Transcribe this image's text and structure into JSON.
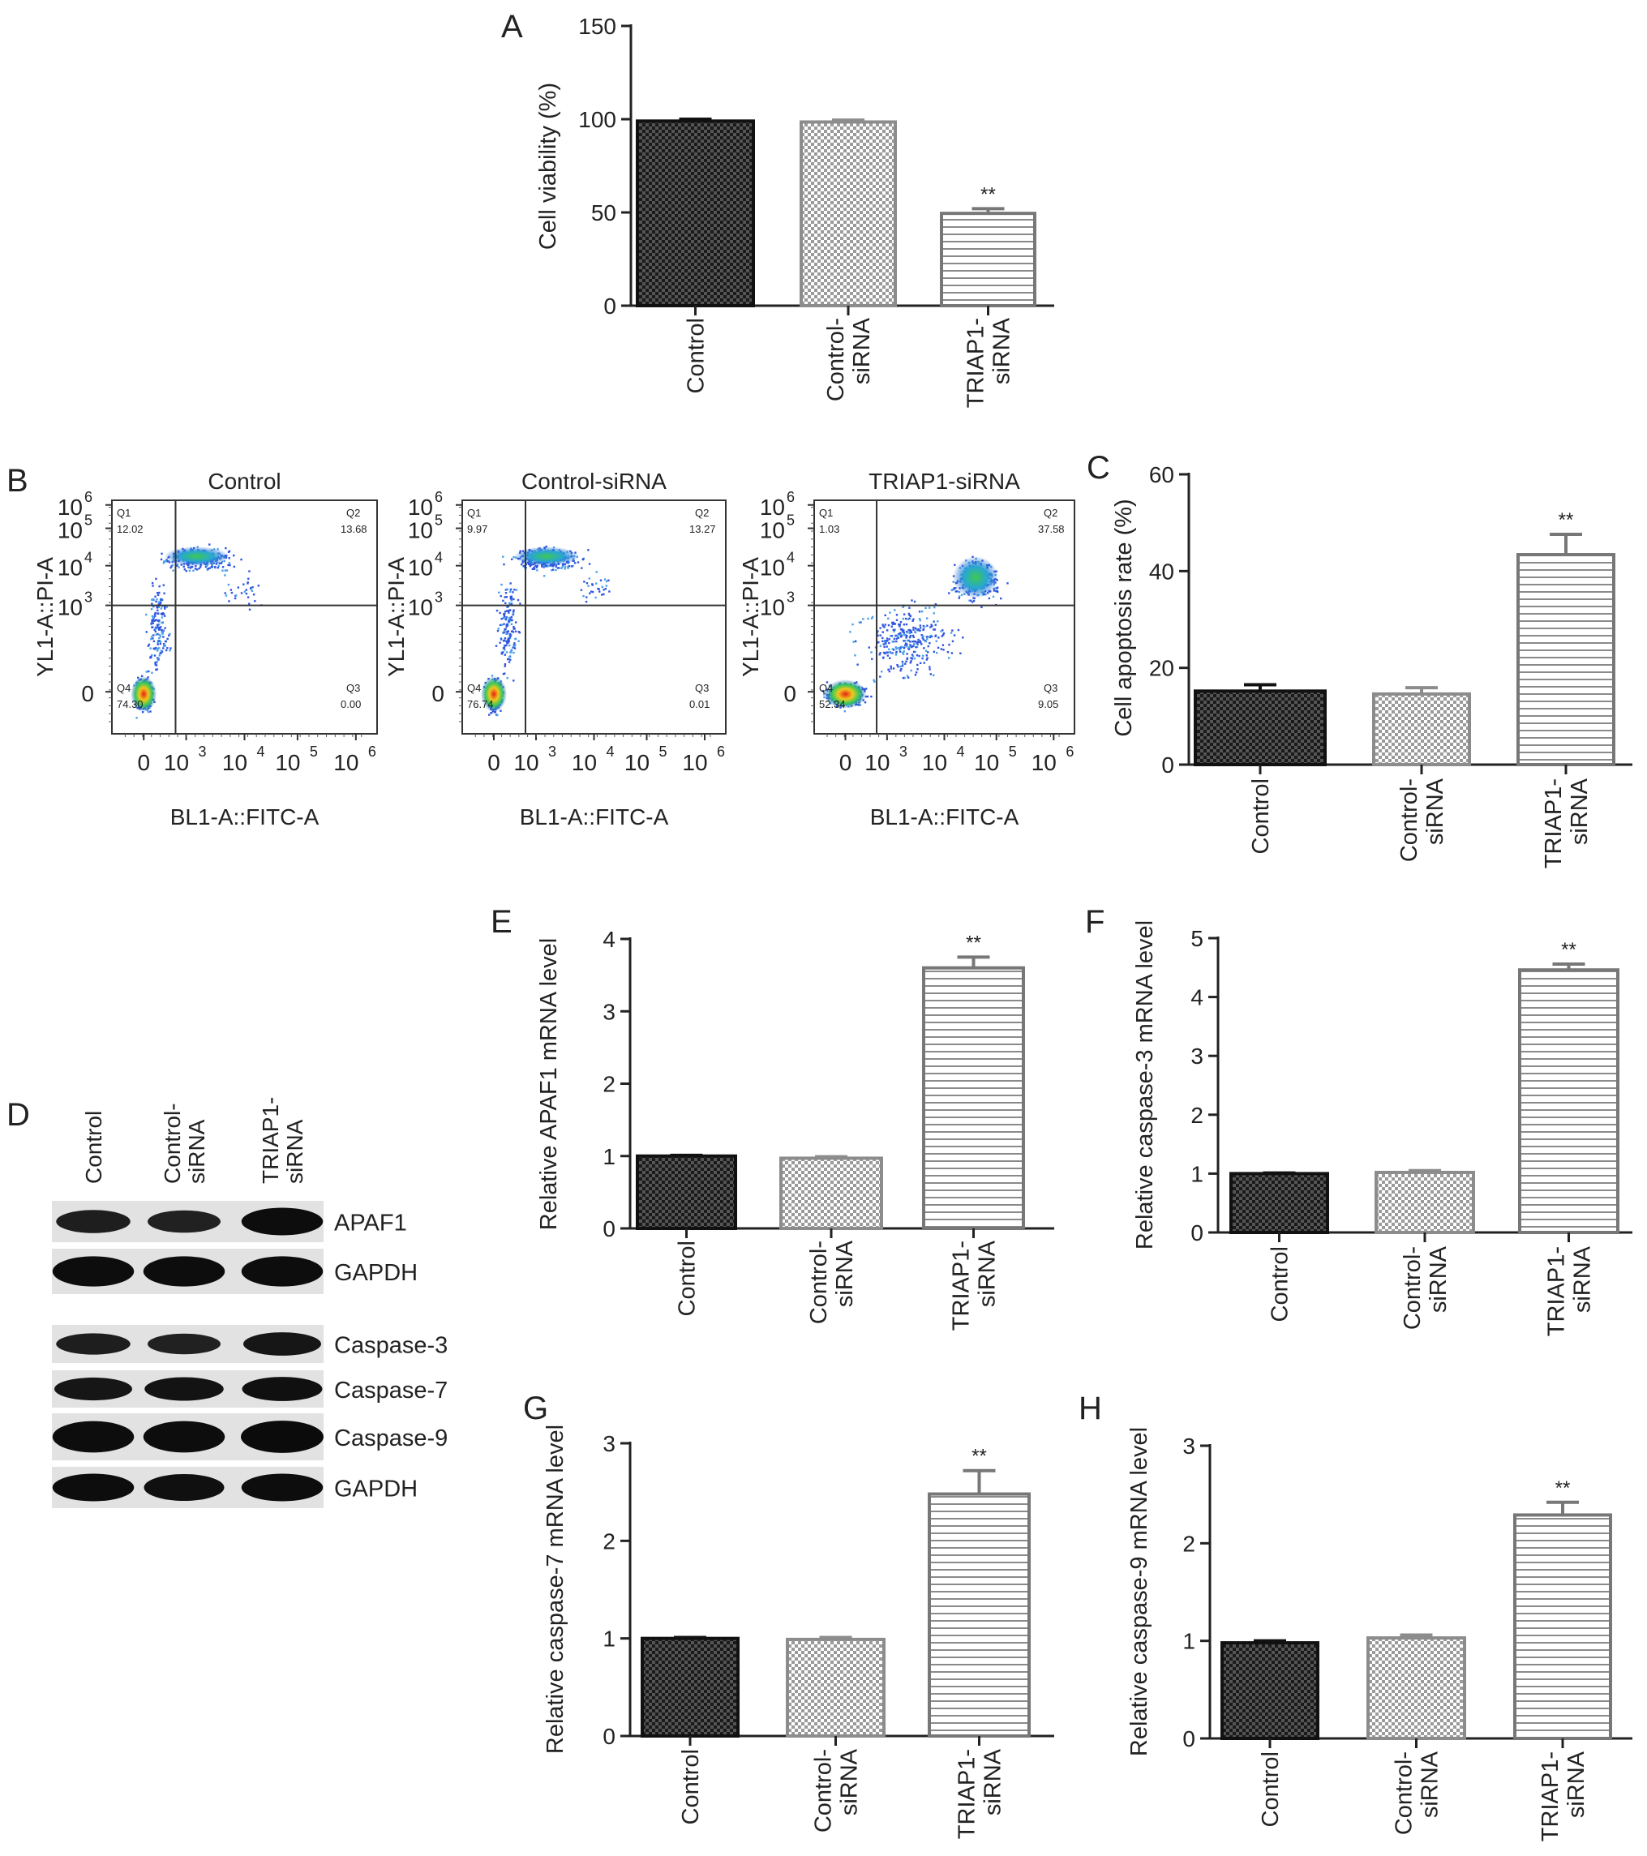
{
  "figure": {
    "categories": [
      "Control",
      "Control-siRNA",
      "TRIAP1-siRNA"
    ],
    "category_labels": [
      [
        "Control"
      ],
      [
        "Control-",
        "siRNA"
      ],
      [
        "TRIAP1-",
        "siRNA"
      ]
    ],
    "significance_marker": "**"
  },
  "chart_data": [
    {
      "id": "A",
      "type": "bar",
      "panel_label": "A",
      "ylabel": "Cell viability (%)",
      "categories": [
        "Control",
        "Control-siRNA",
        "TRIAP1-siRNA"
      ],
      "values": [
        99,
        98.5,
        49.5
      ],
      "errors": [
        1.0,
        1.0,
        2.5
      ],
      "yticks": [
        0,
        50,
        100,
        150
      ],
      "ylim": [
        0,
        150
      ],
      "significance": [
        "",
        "",
        "**"
      ]
    },
    {
      "id": "C",
      "type": "bar",
      "panel_label": "C",
      "ylabel": "Cell apoptosis rate (%)",
      "categories": [
        "Control",
        "Control-siRNA",
        "TRIAP1-siRNA"
      ],
      "values": [
        15.2,
        14.6,
        43.4
      ],
      "errors": [
        1.3,
        1.3,
        4.2
      ],
      "yticks": [
        0,
        20,
        40,
        60
      ],
      "ylim": [
        0,
        60
      ],
      "significance": [
        "",
        "",
        "**"
      ]
    },
    {
      "id": "E",
      "type": "bar",
      "panel_label": "E",
      "ylabel": "Relative APAF1 mRNA level",
      "categories": [
        "Control",
        "Control-siRNA",
        "TRIAP1-siRNA"
      ],
      "values": [
        1.0,
        0.97,
        3.6
      ],
      "errors": [
        0.01,
        0.02,
        0.15
      ],
      "yticks": [
        0,
        1,
        2,
        3,
        4
      ],
      "ylim": [
        0,
        4
      ],
      "significance": [
        "",
        "",
        "**"
      ]
    },
    {
      "id": "F",
      "type": "bar",
      "panel_label": "F",
      "ylabel": "Relative caspase-3 mRNA level",
      "categories": [
        "Control",
        "Control-siRNA",
        "TRIAP1-siRNA"
      ],
      "values": [
        1.0,
        1.02,
        4.46
      ],
      "errors": [
        0.01,
        0.03,
        0.1
      ],
      "yticks": [
        0,
        1,
        2,
        3,
        4,
        5
      ],
      "ylim": [
        0,
        5
      ],
      "significance": [
        "",
        "",
        "**"
      ]
    },
    {
      "id": "G",
      "type": "bar",
      "panel_label": "G",
      "ylabel": "Relative caspase-7 mRNA level",
      "categories": [
        "Control",
        "Control-siRNA",
        "TRIAP1-siRNA"
      ],
      "values": [
        1.0,
        0.99,
        2.48
      ],
      "errors": [
        0.01,
        0.02,
        0.24
      ],
      "yticks": [
        0,
        1,
        2,
        3
      ],
      "ylim": [
        0,
        3
      ],
      "significance": [
        "",
        "",
        "**"
      ]
    },
    {
      "id": "H",
      "type": "bar",
      "panel_label": "H",
      "ylabel": "Relative caspase-9 mRNA level",
      "categories": [
        "Control",
        "Control-siRNA",
        "TRIAP1-siRNA"
      ],
      "values": [
        0.98,
        1.03,
        2.29
      ],
      "errors": [
        0.02,
        0.03,
        0.13
      ],
      "yticks": [
        0,
        1,
        2,
        3
      ],
      "ylim": [
        0,
        3
      ],
      "significance": [
        "",
        "",
        "**"
      ]
    }
  ],
  "flow": {
    "panel_label": "B",
    "xlabel": "BL1-A::FITC-A",
    "ylabel": "YL1-A::PI-A",
    "axis_ticks": [
      "0",
      "10",
      "10",
      "10",
      "10"
    ],
    "axis_exponents": [
      "",
      "3",
      "4",
      "5",
      "6"
    ],
    "plots": [
      {
        "title": "Control",
        "q1": "12.02",
        "q2": "13.68",
        "q3": "0.00",
        "q4": "74.30"
      },
      {
        "title": "Control-siRNA",
        "q1": "9.97",
        "q2": "13.27",
        "q3": "0.01",
        "q4": "76.74"
      },
      {
        "title": "TRIAP1-siRNA",
        "q1": "1.03",
        "q2": "37.58",
        "q3": "9.05",
        "q4": "52.34"
      }
    ],
    "quadrant_names": [
      "Q1",
      "Q2",
      "Q3",
      "Q4"
    ]
  },
  "western": {
    "panel_label": "D",
    "lane_labels": [
      [
        "Control"
      ],
      [
        "Control-",
        "siRNA"
      ],
      [
        "TRIAP1-",
        "siRNA"
      ]
    ],
    "bands": [
      {
        "label": "APAF1",
        "intensity": [
          0.55,
          0.5,
          0.85
        ]
      },
      {
        "label": "GAPDH",
        "intensity": [
          0.85,
          0.85,
          0.85
        ]
      },
      {
        "label": "Caspase-3",
        "intensity": [
          0.55,
          0.5,
          0.7
        ]
      },
      {
        "label": "Caspase-7",
        "intensity": [
          0.7,
          0.75,
          0.8
        ]
      },
      {
        "label": "Caspase-9",
        "intensity": [
          0.85,
          0.85,
          0.9
        ]
      },
      {
        "label": "GAPDH",
        "intensity": [
          0.85,
          0.8,
          0.85
        ]
      }
    ]
  },
  "colors": {
    "control": "#1c1c1c",
    "control_sirna": "#8c8c8c",
    "triap1_sirna": "#777777",
    "axis": "#222222"
  }
}
